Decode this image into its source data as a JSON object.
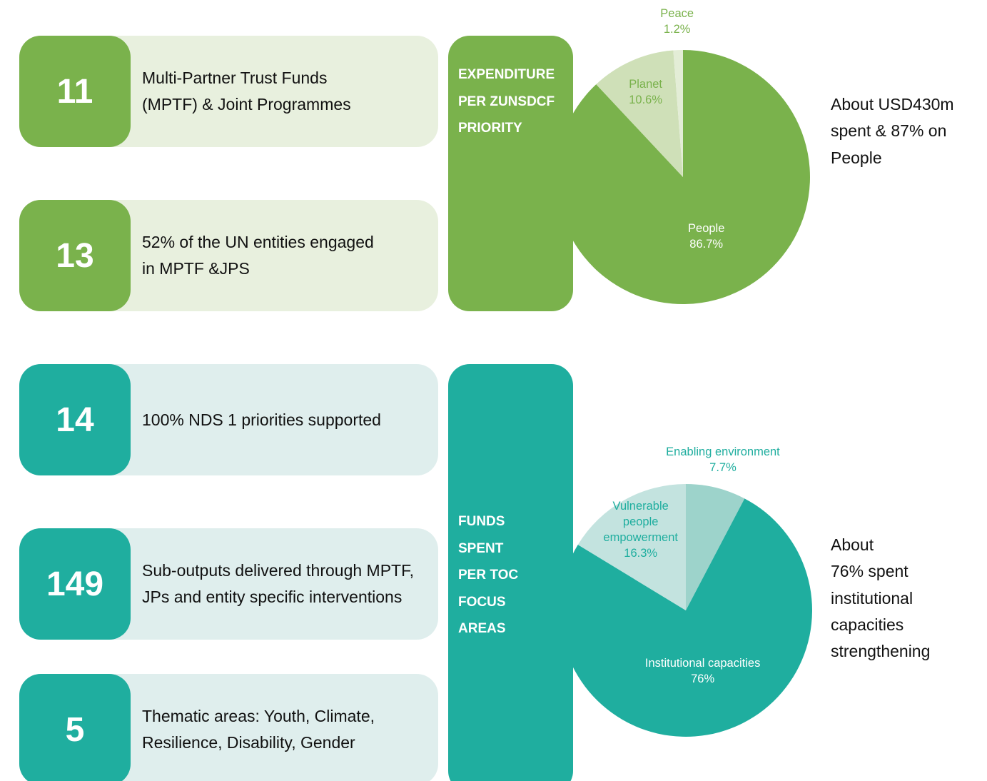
{
  "stats": [
    {
      "number": "11",
      "text": [
        "Multi-Partner Trust Funds",
        "(MPTF) & Joint Programmes"
      ],
      "color": "#7ab24c",
      "background": "#e8f0de"
    },
    {
      "number": "13",
      "text": [
        "52% of the UN entities engaged",
        "in MPTF  &JPS"
      ],
      "color": "#7ab24c",
      "background": "#e8f0de"
    },
    {
      "number": "14",
      "text": [
        "100% NDS 1 priorities supported"
      ],
      "color": "#1fae9f",
      "background": "#dfeeed"
    },
    {
      "number": "149",
      "text": [
        "Sub-outputs delivered through MPTF,",
        "JPs and entity specific interventions"
      ],
      "color": "#1fae9f",
      "background": "#dfeeed"
    },
    {
      "number": "5",
      "text": [
        "Thematic areas: Youth, Climate,",
        "Resilience, Disability, Gender"
      ],
      "color": "#1fae9f",
      "background": "#dfeeed"
    }
  ],
  "chart_data": [
    {
      "type": "pie",
      "title": [
        "EXPENDITURE",
        "PER ZUNSDCF",
        "PRIORITY"
      ],
      "categories": [
        "People",
        "Planet",
        "Peace"
      ],
      "values": [
        86.7,
        10.6,
        1.2
      ],
      "value_labels": [
        "86.7%",
        "10.6%",
        "1.2%"
      ],
      "colors": [
        "#7ab24c",
        "#cfe0b8",
        "#e3edd6"
      ],
      "annotation": [
        "About USD430m",
        "spent & 87% on",
        "People"
      ]
    },
    {
      "type": "pie",
      "title": [
        "FUNDS",
        "SPENT",
        "PER TOC",
        "FOCUS",
        "AREAS"
      ],
      "categories": [
        "Enabling environment",
        "Institutional capacities",
        "Vulnerable people empowerment"
      ],
      "values": [
        7.7,
        76,
        16.3
      ],
      "value_labels": [
        "7.7%",
        "76%",
        "16.3%"
      ],
      "colors": [
        "#9dd3cb",
        "#1fae9f",
        "#c3e3df"
      ],
      "annotation": [
        "About",
        "76% spent",
        "institutional",
        "capacities",
        "strengthening"
      ]
    }
  ]
}
